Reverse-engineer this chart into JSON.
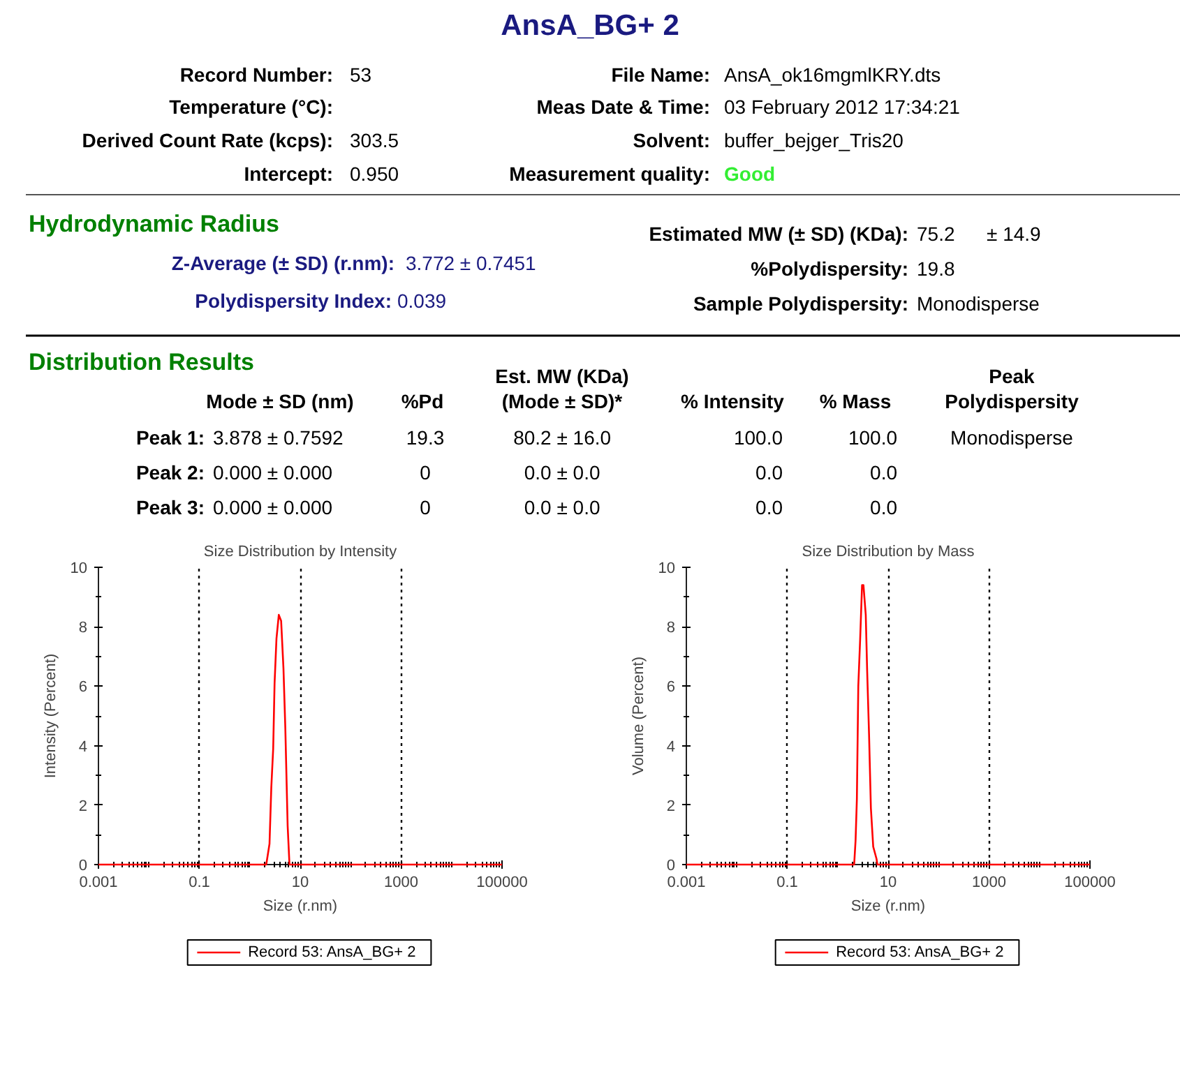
{
  "chart_data": [
    {
      "type": "other",
      "title": "AnsA_BG+ 2",
      "annotations": [
        "Record Number:",
        "53",
        "Temperature (°C):",
        "Derived Count Rate (kcps):",
        "303.5",
        "Intercept:",
        "0.950",
        "File Name:",
        "AnsA_ok16mgmlKRY.dts",
        "Meas Date & Time:",
        "03 February 2012 17:34:21",
        "Solvent:",
        "buffer_bejger_Tris20",
        "Measurement quality:",
        "Good",
        "Hydrodynamic Radius",
        "Z-Average (± SD) (r.nm):",
        "3.772 ±  0.7451",
        "Polydispersity Index:",
        "0.039",
        "Estimated MW (± SD) (KDa):",
        "75.2",
        "± 14.9",
        "%Polydispersity:",
        "19.8",
        "Sample Polydispersity:",
        "Monodisperse",
        "Distribution Results",
        "Mode ± SD (nm)",
        "%Pd",
        "Est. MW (KDa)",
        "(Mode ± SD)*",
        "% Intensity",
        "% Mass",
        "Peak",
        "Polydispersity",
        "Peak 1:",
        "3.878  ± 0.7592",
        "19.3",
        "80.2 ±  16.0",
        "100.0",
        "100.0",
        "Monodisperse",
        "Peak 2:",
        "0.000  ± 0.000",
        "0",
        "0.0 ±  0.0",
        "0.0",
        "0.0",
        "Peak 3:",
        "0.000  ± 0.000",
        "0",
        "0.0 ±  0.0",
        "0.0",
        "0.0"
      ]
    },
    {
      "type": "line",
      "title": "Size Distribution by Intensity",
      "xlabel": "Size (r.nm)",
      "ylabel": "Intensity (Percent)",
      "log": "x",
      "xlim": [
        0.001,
        100000
      ],
      "xticks": [
        0.001,
        0.1,
        10,
        1000,
        100000
      ],
      "ylim": [
        0,
        10
      ],
      "yticks": [
        0,
        2,
        4,
        6,
        8,
        10
      ],
      "grid": "x",
      "legend": "bottom",
      "series": [
        {
          "name": "Record 53: AnsA_BG+ 2",
          "color": "#ff0000",
          "x": [
            0.001,
            2.12,
            2.46,
            2.67,
            2.91,
            3.1,
            3.38,
            3.76,
            4.18,
            4.65,
            5.06,
            5.63,
            6.12,
            100000
          ],
          "values": [
            0,
            0,
            0.7,
            2.6,
            3.9,
            6.1,
            7.6,
            8.4,
            8.2,
            6.6,
            4.6,
            1.3,
            0,
            0
          ]
        }
      ]
    },
    {
      "type": "line",
      "title": "Size Distribution by Mass",
      "xlabel": "Size (r.nm)",
      "ylabel": "Volume (Percent)",
      "log": "x",
      "xlim": [
        0.001,
        100000
      ],
      "xticks": [
        0.001,
        0.1,
        10,
        1000,
        100000
      ],
      "ylim": [
        0,
        10
      ],
      "yticks": [
        0,
        2,
        4,
        6,
        8,
        10
      ],
      "grid": "x",
      "legend": "bottom",
      "series": [
        {
          "name": "Record 53: AnsA_BG+ 2",
          "color": "#ff0000",
          "x": [
            0.001,
            2.12,
            2.26,
            2.4,
            2.56,
            2.79,
            3.04,
            3.24,
            3.6,
            3.84,
            4.18,
            4.55,
            5.06,
            5.87,
            6.13,
            100000
          ],
          "values": [
            0,
            0,
            0.8,
            2.2,
            6.0,
            7.6,
            9.4,
            9.4,
            8.4,
            6.5,
            4.4,
            1.9,
            0.6,
            0.2,
            0,
            0
          ]
        }
      ]
    }
  ]
}
